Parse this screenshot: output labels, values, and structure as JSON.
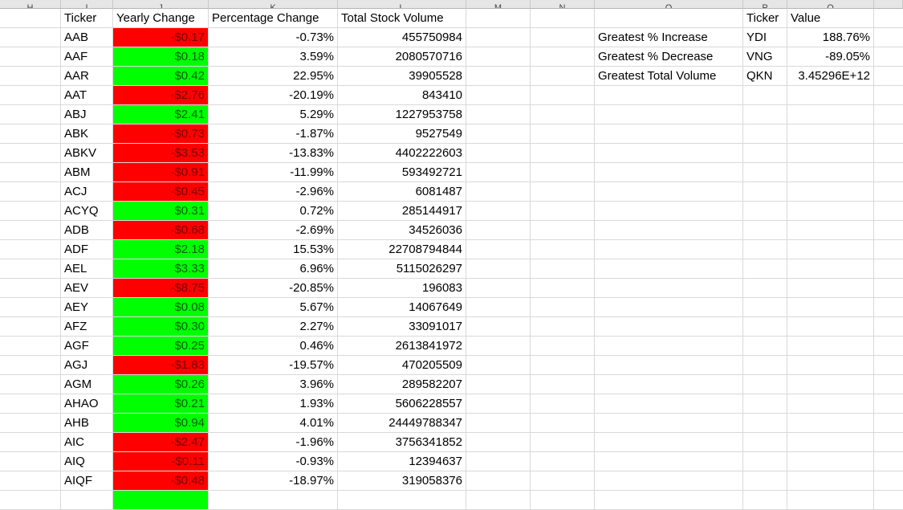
{
  "columns": [
    {
      "letter": "H"
    },
    {
      "letter": "I"
    },
    {
      "letter": "J"
    },
    {
      "letter": "K"
    },
    {
      "letter": "L"
    },
    {
      "letter": "M"
    },
    {
      "letter": "N"
    },
    {
      "letter": "O"
    },
    {
      "letter": "P"
    },
    {
      "letter": "Q"
    }
  ],
  "main_table": {
    "headers": {
      "ticker": "Ticker",
      "yearly_change": "Yearly Change",
      "percentage_change": "Percentage Change",
      "total_volume": "Total Stock Volume"
    },
    "rows": [
      {
        "ticker": "AAB",
        "yearly_change": "-$0.17",
        "sign": "neg",
        "percentage_change": "-0.73%",
        "total_volume": "455750984"
      },
      {
        "ticker": "AAF",
        "yearly_change": "$0.18",
        "sign": "pos",
        "percentage_change": "3.59%",
        "total_volume": "2080570716"
      },
      {
        "ticker": "AAR",
        "yearly_change": "$0.42",
        "sign": "pos",
        "percentage_change": "22.95%",
        "total_volume": "39905528"
      },
      {
        "ticker": "AAT",
        "yearly_change": "-$2.76",
        "sign": "neg",
        "percentage_change": "-20.19%",
        "total_volume": "843410"
      },
      {
        "ticker": "ABJ",
        "yearly_change": "$2.41",
        "sign": "pos",
        "percentage_change": "5.29%",
        "total_volume": "1227953758"
      },
      {
        "ticker": "ABK",
        "yearly_change": "-$0.73",
        "sign": "neg",
        "percentage_change": "-1.87%",
        "total_volume": "9527549"
      },
      {
        "ticker": "ABKV",
        "yearly_change": "-$3.53",
        "sign": "neg",
        "percentage_change": "-13.83%",
        "total_volume": "4402222603"
      },
      {
        "ticker": "ABM",
        "yearly_change": "-$0.91",
        "sign": "neg",
        "percentage_change": "-11.99%",
        "total_volume": "593492721"
      },
      {
        "ticker": "ACJ",
        "yearly_change": "-$0.45",
        "sign": "neg",
        "percentage_change": "-2.96%",
        "total_volume": "6081487"
      },
      {
        "ticker": "ACYQ",
        "yearly_change": "$0.31",
        "sign": "pos",
        "percentage_change": "0.72%",
        "total_volume": "285144917"
      },
      {
        "ticker": "ADB",
        "yearly_change": "-$0.68",
        "sign": "neg",
        "percentage_change": "-2.69%",
        "total_volume": "34526036"
      },
      {
        "ticker": "ADF",
        "yearly_change": "$2.18",
        "sign": "pos",
        "percentage_change": "15.53%",
        "total_volume": "22708794844"
      },
      {
        "ticker": "AEL",
        "yearly_change": "$3.33",
        "sign": "pos",
        "percentage_change": "6.96%",
        "total_volume": "5115026297"
      },
      {
        "ticker": "AEV",
        "yearly_change": "-$8.75",
        "sign": "neg",
        "percentage_change": "-20.85%",
        "total_volume": "196083"
      },
      {
        "ticker": "AEY",
        "yearly_change": "$0.08",
        "sign": "pos",
        "percentage_change": "5.67%",
        "total_volume": "14067649"
      },
      {
        "ticker": "AFZ",
        "yearly_change": "$0.30",
        "sign": "pos",
        "percentage_change": "2.27%",
        "total_volume": "33091017"
      },
      {
        "ticker": "AGF",
        "yearly_change": "$0.25",
        "sign": "pos",
        "percentage_change": "0.46%",
        "total_volume": "2613841972"
      },
      {
        "ticker": "AGJ",
        "yearly_change": "-$1.83",
        "sign": "neg",
        "percentage_change": "-19.57%",
        "total_volume": "470205509"
      },
      {
        "ticker": "AGM",
        "yearly_change": "$0.26",
        "sign": "pos",
        "percentage_change": "3.96%",
        "total_volume": "289582207"
      },
      {
        "ticker": "AHAO",
        "yearly_change": "$0.21",
        "sign": "pos",
        "percentage_change": "1.93%",
        "total_volume": "5606228557"
      },
      {
        "ticker": "AHB",
        "yearly_change": "$0.94",
        "sign": "pos",
        "percentage_change": "4.01%",
        "total_volume": "24449788347"
      },
      {
        "ticker": "AIC",
        "yearly_change": "-$2.47",
        "sign": "neg",
        "percentage_change": "-1.96%",
        "total_volume": "3756341852"
      },
      {
        "ticker": "AIQ",
        "yearly_change": "-$0.11",
        "sign": "neg",
        "percentage_change": "-0.93%",
        "total_volume": "12394637"
      },
      {
        "ticker": "AIQF",
        "yearly_change": "-$0.48",
        "sign": "neg",
        "percentage_change": "-18.97%",
        "total_volume": "319058376"
      },
      {
        "ticker": "",
        "yearly_change": "",
        "sign": "pos",
        "percentage_change": "",
        "total_volume": ""
      }
    ]
  },
  "summary_table": {
    "headers": {
      "ticker": "Ticker",
      "value": "Value"
    },
    "rows": [
      {
        "label": "Greatest % Increase",
        "ticker": "YDI",
        "value": "188.76%"
      },
      {
        "label": "Greatest % Decrease",
        "ticker": "VNG",
        "value": "-89.05%"
      },
      {
        "label": "Greatest Total Volume",
        "ticker": "QKN",
        "value": "3.45296E+12"
      }
    ]
  },
  "colors": {
    "positive": "#00ff00",
    "negative": "#ff0000",
    "gridline": "#d9d9d9",
    "header_bg": "#e6e6e6"
  }
}
